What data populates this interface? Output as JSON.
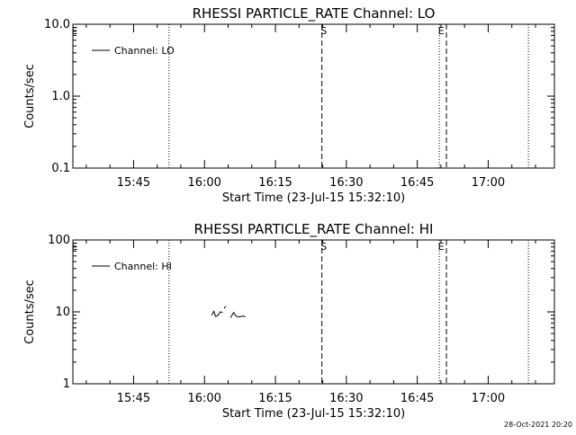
{
  "chart_data": [
    {
      "type": "line",
      "title": "RHESSI PARTICLE_RATE Channel: LO",
      "xlabel": "Start Time (23-Jul-15 15:32:10)",
      "ylabel": "Counts/sec",
      "yscale": "log",
      "ylim": [
        0.1,
        10.0
      ],
      "yticks": [
        0.1,
        1.0,
        10.0
      ],
      "ytick_labels": [
        "0.1",
        "1.0",
        "10.0"
      ],
      "xlim": [
        "15:32:10",
        "17:14:00"
      ],
      "xticks": [
        "15:45",
        "16:00",
        "16:15",
        "16:30",
        "16:45",
        "17:00"
      ],
      "grid": false,
      "legend": {
        "position": "top-left",
        "entries": [
          "Channel: LO"
        ]
      },
      "series": [
        {
          "name": "Channel: LO",
          "points": []
        }
      ],
      "markers": [
        {
          "label": "E",
          "time": "15:32:10",
          "style": "solid"
        },
        {
          "label": "",
          "time": "15:52:30",
          "style": "dotted"
        },
        {
          "label": "S",
          "time": "16:24:50",
          "style": "dashed"
        },
        {
          "label": "E",
          "time": "16:49:40",
          "style": "dotted"
        },
        {
          "label": "",
          "time": "16:51:10",
          "style": "dashed"
        },
        {
          "label": "",
          "time": "17:08:30",
          "style": "dotted"
        }
      ]
    },
    {
      "type": "line",
      "title": "RHESSI PARTICLE_RATE Channel: HI",
      "xlabel": "Start Time (23-Jul-15 15:32:10)",
      "ylabel": "Counts/sec",
      "yscale": "log",
      "ylim": [
        1,
        100
      ],
      "yticks": [
        1,
        10,
        100
      ],
      "ytick_labels": [
        "1",
        "10",
        "100"
      ],
      "xlim": [
        "15:32:10",
        "17:14:00"
      ],
      "xticks": [
        "15:45",
        "16:00",
        "16:15",
        "16:30",
        "16:45",
        "17:00"
      ],
      "grid": false,
      "legend": {
        "position": "top-left",
        "entries": [
          "Channel: HI"
        ]
      },
      "series": [
        {
          "name": "Channel: HI",
          "segments": [
            [
              [
                "16:01:30",
                9.0
              ],
              [
                "16:02:00",
                10.2
              ],
              [
                "16:02:20",
                8.6
              ],
              [
                "16:02:50",
                8.9
              ],
              [
                "16:03:20",
                10.0
              ],
              [
                "16:03:50",
                9.8
              ]
            ],
            [
              [
                "16:04:10",
                11.2
              ],
              [
                "16:04:30",
                12.0
              ]
            ],
            [
              [
                "16:05:30",
                8.3
              ],
              [
                "16:06:10",
                9.8
              ],
              [
                "16:06:40",
                8.7
              ],
              [
                "16:07:20",
                8.5
              ],
              [
                "16:08:00",
                8.7
              ],
              [
                "16:08:40",
                8.6
              ]
            ]
          ]
        }
      ],
      "markers": [
        {
          "label": "E",
          "time": "15:32:10",
          "style": "solid"
        },
        {
          "label": "",
          "time": "15:52:30",
          "style": "dotted"
        },
        {
          "label": "S",
          "time": "16:24:50",
          "style": "dashed"
        },
        {
          "label": "E",
          "time": "16:49:40",
          "style": "dotted"
        },
        {
          "label": "",
          "time": "16:51:10",
          "style": "dashed"
        },
        {
          "label": "",
          "time": "17:08:30",
          "style": "dotted"
        }
      ]
    }
  ],
  "footer": {
    "timestamp": "28-Oct-2021 20:20"
  }
}
